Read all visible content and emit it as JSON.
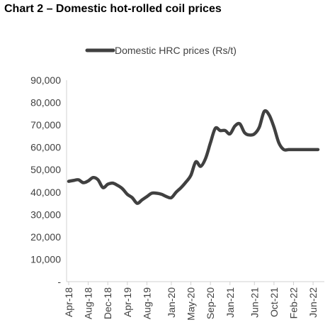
{
  "chart_data": {
    "type": "line",
    "title": "Chart 2 – Domestic hot-rolled coil prices",
    "xlabel": "",
    "ylabel": "",
    "ylim": [
      0,
      90000
    ],
    "yticks": [
      0,
      10000,
      20000,
      30000,
      40000,
      50000,
      60000,
      70000,
      80000,
      90000
    ],
    "ytick_labels": [
      "-",
      "10,000",
      "20,000",
      "30,000",
      "40,000",
      "50,000",
      "60,000",
      "70,000",
      "80,000",
      "90,000"
    ],
    "xtick_labels": [
      "Apr-18",
      "Aug-18",
      "Dec-18",
      "Apr-19",
      "Aug-19",
      "Jan-20",
      "May-20",
      "Sep-20",
      "Jan-21",
      "Jun-21",
      "Oct-21",
      "Feb-22",
      "Jun-22"
    ],
    "legend_position": "top-center",
    "grid": false,
    "x": [
      "Apr-18",
      "May-18",
      "Jun-18",
      "Jul-18",
      "Aug-18",
      "Sep-18",
      "Oct-18",
      "Nov-18",
      "Dec-18",
      "Jan-19",
      "Feb-19",
      "Mar-19",
      "Apr-19",
      "May-19",
      "Jun-19",
      "Jul-19",
      "Aug-19",
      "Sep-19",
      "Oct-19",
      "Nov-19",
      "Dec-19",
      "Jan-20",
      "Feb-20",
      "Mar-20",
      "Apr-20",
      "May-20",
      "Jun-20",
      "Jul-20",
      "Aug-20",
      "Sep-20",
      "Oct-20",
      "Nov-20",
      "Dec-20",
      "Jan-21",
      "Feb-21",
      "Mar-21",
      "Apr-21",
      "May-21",
      "Jun-21",
      "Jul-21",
      "Aug-21",
      "Sep-21",
      "Oct-21",
      "Nov-21",
      "Dec-21",
      "Jan-22",
      "Feb-22",
      "Mar-22",
      "Apr-22",
      "May-22",
      "Jun-22",
      "Jul-22"
    ],
    "series": [
      {
        "name": "Domestic HRC prices (Rs/t)",
        "color": "#404040",
        "values": [
          44800,
          45200,
          45500,
          44200,
          45000,
          46500,
          45500,
          42000,
          43500,
          44000,
          43000,
          41500,
          39000,
          37500,
          35000,
          36500,
          38000,
          39500,
          39500,
          39000,
          38000,
          37500,
          40000,
          42000,
          44500,
          47500,
          53500,
          51500,
          55000,
          62000,
          68500,
          67500,
          67500,
          66000,
          69500,
          70500,
          66500,
          65500,
          66000,
          69000,
          76000,
          74500,
          69000,
          62000,
          59000,
          59000,
          59000,
          59000,
          59000,
          59000,
          59000,
          59000
        ]
      }
    ]
  }
}
